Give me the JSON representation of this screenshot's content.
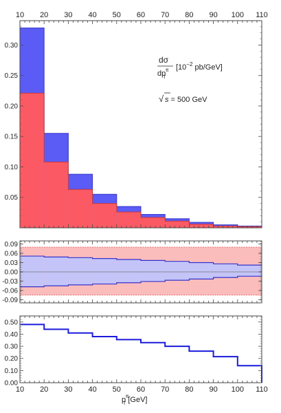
{
  "chart_data": [
    {
      "type": "bar",
      "panel": "main",
      "x_bin_edges": [
        10,
        20,
        30,
        40,
        50,
        60,
        70,
        80,
        90,
        100,
        110
      ],
      "x_ticks": [
        "10",
        "20",
        "30",
        "40",
        "50",
        "60",
        "70",
        "80",
        "90",
        "100",
        "110"
      ],
      "ylim": [
        0,
        0.34
      ],
      "y_ticks": [
        "0.05",
        "0.10",
        "0.15",
        "0.20",
        "0.25",
        "0.30"
      ],
      "y_tick_values": [
        0.05,
        0.1,
        0.15,
        0.2,
        0.25,
        0.3
      ],
      "series": [
        {
          "color": "#5b5bf6",
          "values": [
            0.328,
            0.155,
            0.088,
            0.055,
            0.035,
            0.022,
            0.015,
            0.009,
            0.005,
            0.003
          ]
        },
        {
          "color": "#fb5a64",
          "values": [
            0.221,
            0.108,
            0.063,
            0.04,
            0.026,
            0.017,
            0.011,
            0.006,
            0.003,
            0.002
          ]
        }
      ],
      "annotation_ylabel_num": "dσ",
      "annotation_ylabel_den_base": "dp",
      "annotation_ylabel_den_sup": "tt",
      "annotation_ylabel_den_sub": "T",
      "annotation_units": "[10",
      "annotation_units_exp": "−2",
      "annotation_units_rest": " pb/GeV]",
      "annotation_sqrt_s": "s",
      "annotation_energy": " = 500 GeV",
      "grid": false
    },
    {
      "type": "line",
      "panel": "middle",
      "x_bin_edges": [
        10,
        20,
        30,
        40,
        50,
        60,
        70,
        80,
        90,
        100,
        110
      ],
      "ylim": [
        -0.1,
        0.1
      ],
      "y_ticks": [
        "0.09",
        "0.06",
        "0.03",
        "0.00",
        "-0.03",
        "-0.06",
        "-0.09"
      ],
      "y_tick_values": [
        0.09,
        0.06,
        0.03,
        0.0,
        -0.03,
        -0.06,
        -0.09
      ],
      "outer_band": {
        "color": "#fbbcbc",
        "edge_color": "#e05050",
        "upper": 0.08,
        "lower": -0.075
      },
      "inner_band": {
        "color": "#c4c4f8",
        "edge_color": "#3333cc",
        "upper": [
          0.051,
          0.048,
          0.046,
          0.043,
          0.04,
          0.037,
          0.034,
          0.03,
          0.026,
          0.022
        ],
        "lower": [
          -0.048,
          -0.045,
          -0.042,
          -0.039,
          -0.035,
          -0.031,
          -0.027,
          -0.023,
          -0.018,
          -0.014
        ]
      },
      "grid": false
    },
    {
      "type": "line",
      "panel": "bottom",
      "x_bin_edges": [
        10,
        20,
        30,
        40,
        50,
        60,
        70,
        80,
        90,
        100,
        110
      ],
      "x_ticks": [
        "10",
        "20",
        "30",
        "40",
        "50",
        "60",
        "70",
        "80",
        "90",
        "100",
        "110"
      ],
      "xlabel_base": "p",
      "xlabel_sup": "tt",
      "xlabel_sub": "T",
      "xlabel_units": " [GeV]",
      "ylim": [
        0,
        0.55
      ],
      "y_ticks": [
        "0.50",
        "0.40",
        "0.30",
        "0.20",
        "0.10",
        "0.00"
      ],
      "y_tick_values": [
        0.5,
        0.4,
        0.3,
        0.2,
        0.1,
        0.0
      ],
      "series": [
        {
          "color": "#1a1adb",
          "values": [
            0.48,
            0.44,
            0.41,
            0.38,
            0.355,
            0.33,
            0.3,
            0.26,
            0.215,
            0.14
          ]
        }
      ],
      "grid": false
    }
  ]
}
